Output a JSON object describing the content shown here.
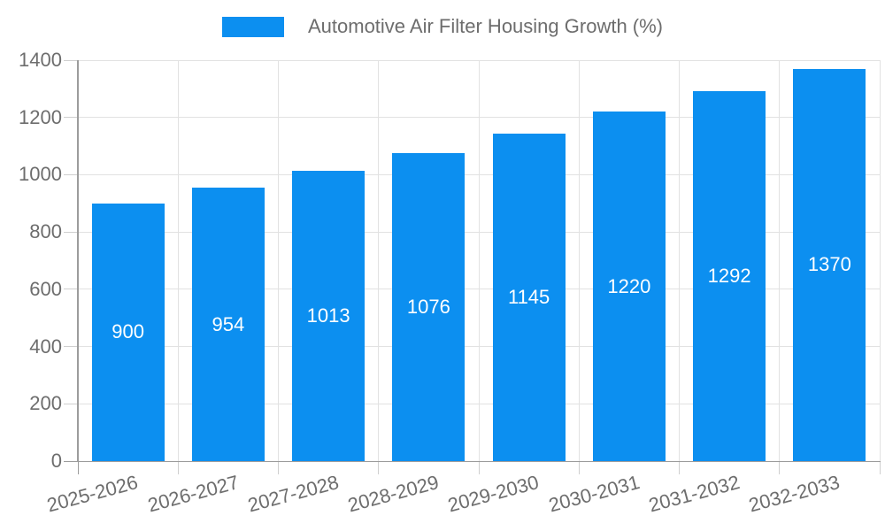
{
  "legend": {
    "items": [
      {
        "label": "Automotive Air Filter Housing Growth (%)",
        "color": "#0C8FF0"
      }
    ]
  },
  "chart_data": {
    "type": "bar",
    "title": "Automotive Air Filter Housing Growth (%)",
    "categories": [
      "2025-2026",
      "2026-2027",
      "2027-2028",
      "2028-2029",
      "2029-2030",
      "2030-2031",
      "2031-2032",
      "2032-2033"
    ],
    "values": [
      900,
      954,
      1013,
      1076,
      1145,
      1220,
      1292,
      1370
    ],
    "xlabel": "",
    "ylabel": "",
    "ylim": [
      0,
      1400
    ],
    "yticks": [
      0,
      200,
      400,
      600,
      800,
      1000,
      1200,
      1400
    ],
    "grid": true,
    "legend_position": "top",
    "bar_color": "#0C8FF0",
    "value_label_color": "#FFFFFF",
    "axis_text_color": "#6D6D6D",
    "gridline_color": "#E2E2E2",
    "tick_color": "#CFCFCF",
    "axis_line_color": "#9C9C9C",
    "x_label_rotation_deg": -15
  }
}
